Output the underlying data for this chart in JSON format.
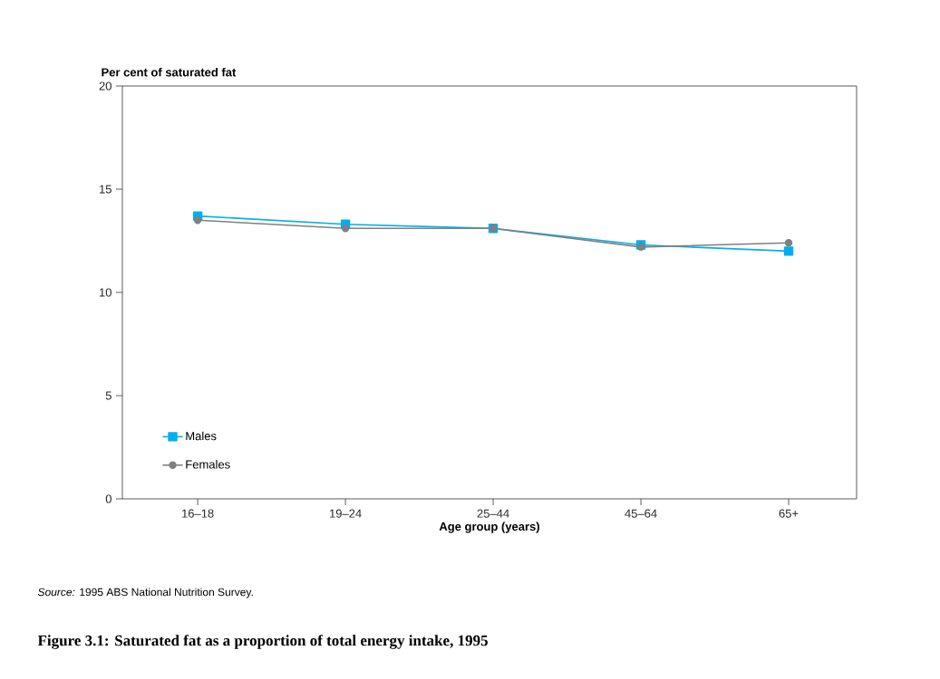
{
  "chart_data": {
    "type": "line",
    "title": "Figure 3.1:  Saturated fat as a proportion of total energy intake, 1995",
    "xlabel": "Age group (years)",
    "ylabel": "Per cent of saturated fat",
    "categories": [
      "16–18",
      "19–24",
      "25–44",
      "45–64",
      "65+"
    ],
    "series": [
      {
        "name": "Males",
        "color": "#00aeef",
        "marker": "square",
        "values": [
          13.7,
          13.3,
          13.1,
          12.3,
          12.0
        ]
      },
      {
        "name": "Females",
        "color": "#808080",
        "marker": "circle",
        "values": [
          13.5,
          13.1,
          13.1,
          12.2,
          12.4
        ]
      }
    ],
    "ylim": [
      0,
      20
    ],
    "yticks": [
      0,
      5,
      10,
      15,
      20
    ],
    "grid": false,
    "legend": "bottom left",
    "line_style": "solid",
    "annotations": [
      "*Source:* 1995 ABS National Nutrition Survey."
    ]
  }
}
